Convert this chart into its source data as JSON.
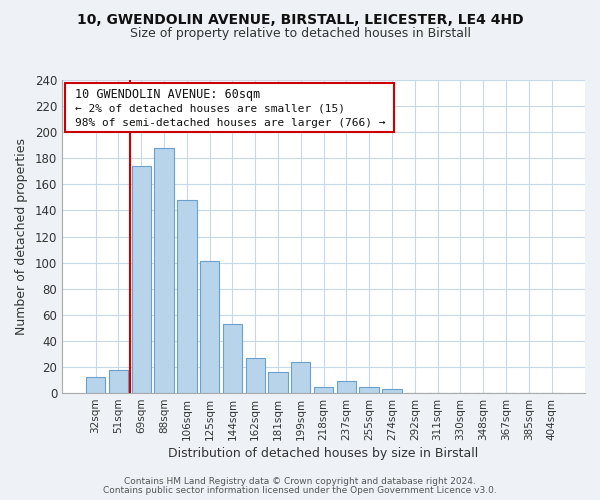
{
  "title1": "10, GWENDOLIN AVENUE, BIRSTALL, LEICESTER, LE4 4HD",
  "title2": "Size of property relative to detached houses in Birstall",
  "xlabel": "Distribution of detached houses by size in Birstall",
  "ylabel": "Number of detached properties",
  "bar_labels": [
    "32sqm",
    "51sqm",
    "69sqm",
    "88sqm",
    "106sqm",
    "125sqm",
    "144sqm",
    "162sqm",
    "181sqm",
    "199sqm",
    "218sqm",
    "237sqm",
    "255sqm",
    "274sqm",
    "292sqm",
    "311sqm",
    "330sqm",
    "348sqm",
    "367sqm",
    "385sqm",
    "404sqm"
  ],
  "bar_values": [
    12,
    18,
    174,
    188,
    148,
    101,
    53,
    27,
    16,
    24,
    5,
    9,
    5,
    3,
    0,
    0,
    0,
    0,
    0,
    0,
    0
  ],
  "bar_color": "#b8d4ea",
  "bar_edge_color": "#6aA0cc",
  "highlight_color": "#cc0000",
  "ylim": [
    0,
    240
  ],
  "yticks": [
    0,
    20,
    40,
    60,
    80,
    100,
    120,
    140,
    160,
    180,
    200,
    220,
    240
  ],
  "annotation_title": "10 GWENDOLIN AVENUE: 60sqm",
  "annotation_line1": "← 2% of detached houses are smaller (15)",
  "annotation_line2": "98% of semi-detached houses are larger (766) →",
  "footer1": "Contains HM Land Registry data © Crown copyright and database right 2024.",
  "footer2": "Contains public sector information licensed under the Open Government Licence v3.0.",
  "bg_color": "#eef2f7",
  "plot_bg_color": "#ffffff",
  "grid_color": "#c8d8e8"
}
